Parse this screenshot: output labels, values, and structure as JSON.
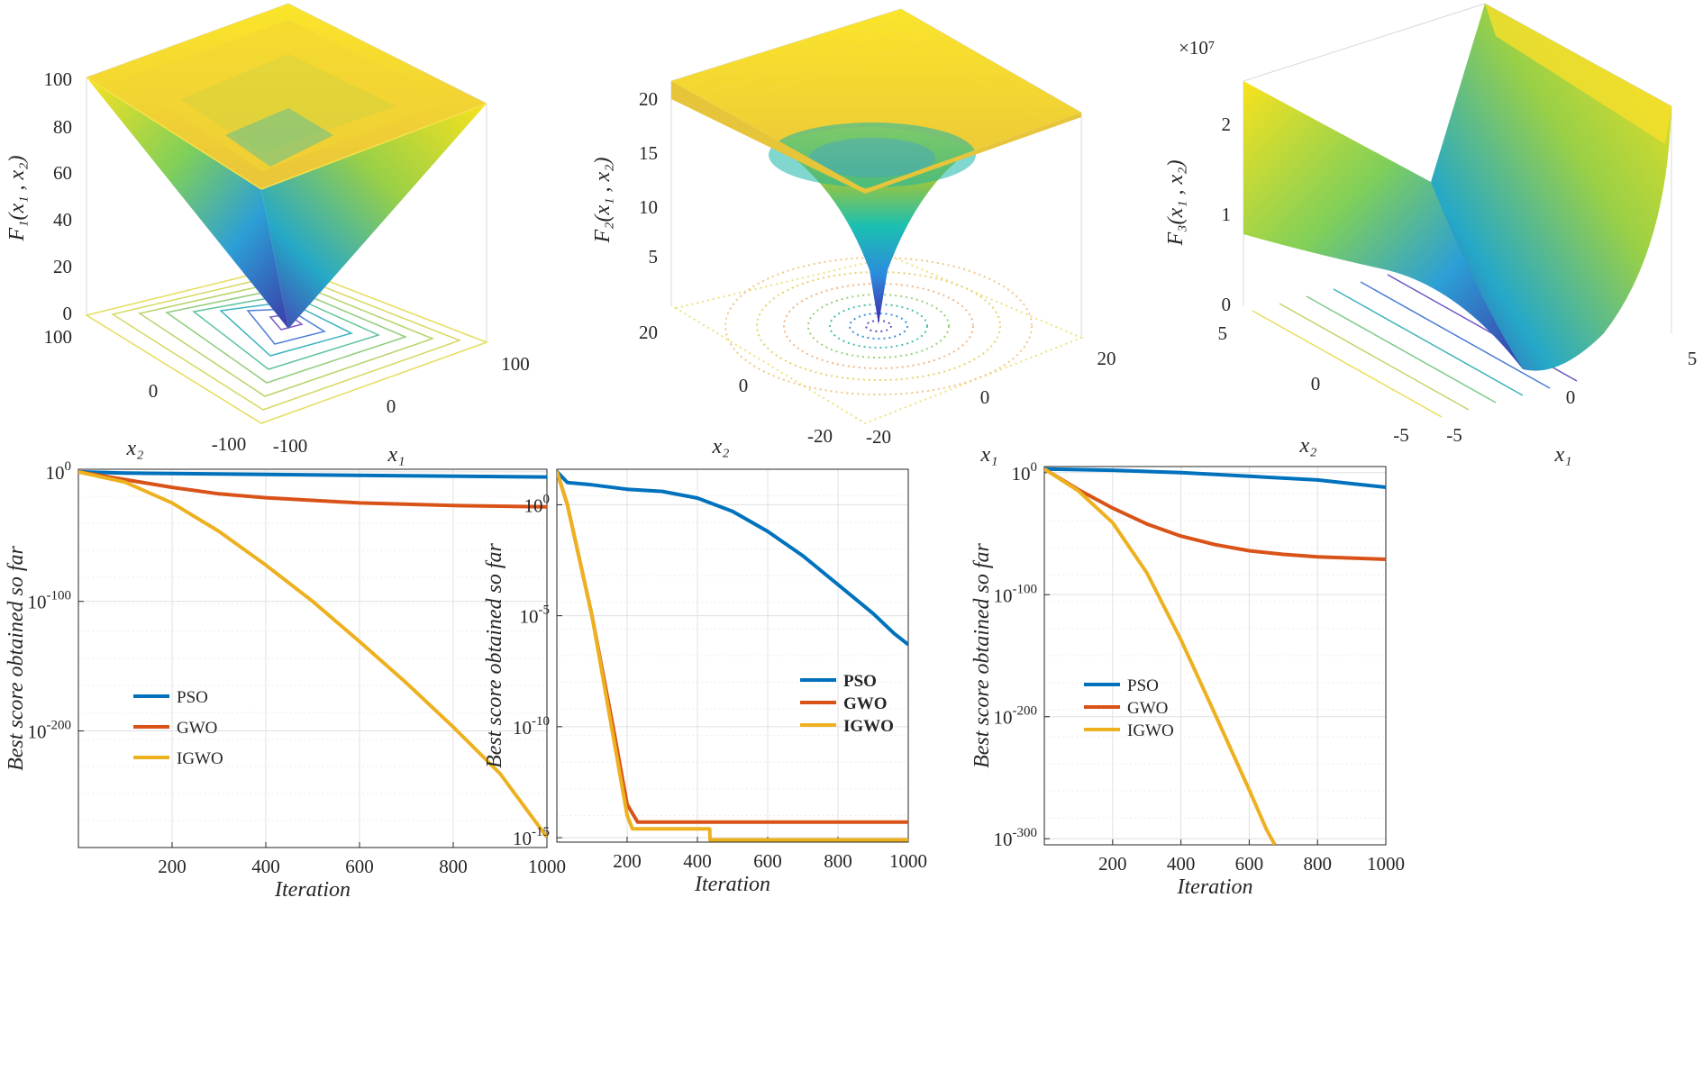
{
  "chart_data": [
    {
      "type": "surface",
      "name": "F1",
      "zlabel": "F₁(x₁ , x₂)",
      "xlabel": "x₁",
      "ylabel": "x₂",
      "zticks": [
        "0",
        "20",
        "40",
        "60",
        "80",
        "100"
      ],
      "xticks": [
        "-100",
        "0",
        "100"
      ],
      "yticks": [
        "-100",
        "0",
        "100"
      ],
      "zlim": [
        0,
        100
      ],
      "xlim": [
        -100,
        100
      ],
      "ylim": [
        -100,
        100
      ]
    },
    {
      "type": "surface",
      "name": "F2",
      "zlabel": "F₂(x₁ , x₂)",
      "xlabel": "x₁",
      "ylabel": "x₂",
      "zticks": [
        "5",
        "10",
        "15",
        "20"
      ],
      "xticks": [
        "-20",
        "0",
        "20"
      ],
      "yticks": [
        "-20",
        "0",
        "20"
      ],
      "zlim": [
        0,
        22
      ],
      "xlim": [
        -20,
        20
      ],
      "ylim": [
        -20,
        20
      ]
    },
    {
      "type": "surface",
      "name": "F3",
      "zlabel": "F₃(x₁ , x₂)",
      "xlabel": "x₁",
      "ylabel": "x₂",
      "scale": "×10⁷",
      "zticks": [
        "0",
        "1",
        "2"
      ],
      "xticks": [
        "-5",
        "0",
        "5"
      ],
      "yticks": [
        "-5",
        "0",
        "5"
      ],
      "zlim": [
        0,
        2.5
      ],
      "xlim": [
        -5,
        5
      ],
      "ylim": [
        -5,
        5
      ]
    },
    {
      "type": "line",
      "yscale": "log",
      "xlabel": "Iteration",
      "ylabel": "Best score obtained so far",
      "xticks": [
        "200",
        "400",
        "600",
        "800",
        "1000"
      ],
      "yticks": [
        "10^0",
        "10^-100",
        "10^-200"
      ],
      "xlim": [
        0,
        1000
      ],
      "ylim_exp": [
        -290,
        2
      ],
      "series": [
        {
          "name": "PSO",
          "color": "#0072BD",
          "x": [
            0,
            100,
            400,
            700,
            1000
          ],
          "log10y": [
            0,
            -1,
            -2,
            -3,
            -4
          ]
        },
        {
          "name": "GWO",
          "color": "#D95319",
          "x": [
            0,
            100,
            200,
            300,
            400,
            600,
            800,
            1000
          ],
          "log10y": [
            0,
            -6,
            -12,
            -17,
            -20,
            -24,
            -26,
            -27
          ]
        },
        {
          "name": "IGWO",
          "color": "#EDB120",
          "x": [
            0,
            100,
            200,
            300,
            400,
            500,
            600,
            700,
            800,
            900,
            1000
          ],
          "log10y": [
            0,
            -8,
            -24,
            -46,
            -72,
            -100,
            -131,
            -163,
            -197,
            -233,
            -282
          ]
        }
      ]
    },
    {
      "type": "line",
      "yscale": "log",
      "xlabel": "Iteration",
      "ylabel": "Best score obtained so far",
      "xticks": [
        "200",
        "400",
        "600",
        "800",
        "1000"
      ],
      "yticks": [
        "10^0",
        "10^-5",
        "10^-10",
        "10^-15"
      ],
      "xlim": [
        0,
        1000
      ],
      "ylim_exp": [
        -15.2,
        1.6
      ],
      "series": [
        {
          "name": "PSO",
          "color": "#0072BD",
          "x": [
            0,
            30,
            100,
            200,
            300,
            400,
            500,
            600,
            700,
            800,
            900,
            960,
            1000
          ],
          "log10y": [
            1.5,
            1.0,
            0.9,
            0.7,
            0.6,
            0.3,
            -0.3,
            -1.2,
            -2.3,
            -3.6,
            -4.9,
            -5.8,
            -6.3
          ]
        },
        {
          "name": "GWO",
          "color": "#D95319",
          "x": [
            0,
            30,
            100,
            160,
            200,
            230,
            260,
            1000
          ],
          "log10y": [
            1.5,
            0,
            -5,
            -10,
            -13.5,
            -14.3,
            -14.3,
            -14.3
          ]
        },
        {
          "name": "IGWO",
          "color": "#EDB120",
          "x": [
            0,
            30,
            100,
            150,
            200,
            215,
            435,
            436,
            1000
          ],
          "log10y": [
            1.5,
            0,
            -5,
            -9.5,
            -14,
            -14.6,
            -14.6,
            -15.1,
            -15.1
          ]
        }
      ]
    },
    {
      "type": "line",
      "yscale": "log",
      "xlabel": "Iteration",
      "ylabel": "Best score obtained so far",
      "xticks": [
        "200",
        "400",
        "600",
        "800",
        "1000"
      ],
      "yticks": [
        "10^0",
        "10^-100",
        "10^-200",
        "10^-300"
      ],
      "xlim": [
        0,
        1000
      ],
      "ylim_exp": [
        -305,
        5
      ],
      "series": [
        {
          "name": "PSO",
          "color": "#0072BD",
          "x": [
            0,
            200,
            400,
            600,
            800,
            900,
            1000
          ],
          "log10y": [
            3,
            2,
            0,
            -3,
            -6,
            -9,
            -12
          ]
        },
        {
          "name": "GWO",
          "color": "#D95319",
          "x": [
            0,
            100,
            200,
            300,
            400,
            500,
            600,
            700,
            800,
            900,
            1000
          ],
          "log10y": [
            3,
            -14,
            -29,
            -42,
            -52,
            -59,
            -64,
            -67,
            -69,
            -70,
            -71
          ]
        },
        {
          "name": "IGWO",
          "color": "#EDB120",
          "x": [
            0,
            100,
            200,
            300,
            400,
            500,
            600,
            650,
            675
          ],
          "log10y": [
            3,
            -15,
            -41,
            -82,
            -137,
            -198,
            -260,
            -292,
            -305
          ]
        }
      ]
    }
  ]
}
